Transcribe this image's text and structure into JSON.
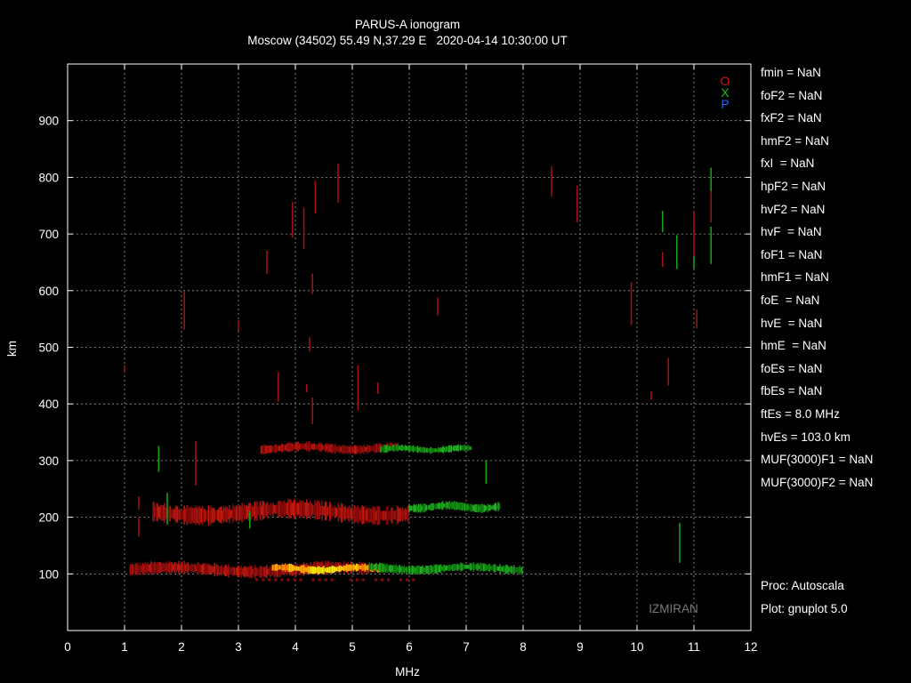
{
  "chart_data": {
    "type": "scatter",
    "title": "PARUS-A ionogram",
    "subtitle": "Moscow (34502) 55.49 N,37.29 E   2020-04-14 10:30:00 UT",
    "xlabel": "MHz",
    "ylabel": "km",
    "xlim": [
      0,
      12
    ],
    "ylim": [
      0,
      1000
    ],
    "x_ticks": [
      "0",
      "1",
      "2",
      "3",
      "4",
      "5",
      "6",
      "7",
      "8",
      "9",
      "10",
      "11",
      "12"
    ],
    "y_ticks": [
      "100",
      "200",
      "300",
      "400",
      "500",
      "600",
      "700",
      "800",
      "900"
    ],
    "grid": true,
    "legend": [
      {
        "label": "O",
        "color": "#e01010"
      },
      {
        "label": "X",
        "color": "#10c010"
      },
      {
        "label": "P",
        "color": "#2060ff"
      }
    ],
    "watermark": "IZMIRAN",
    "traces": [
      {
        "name": "E-layer echo",
        "polarization": "O",
        "x_range": [
          1.1,
          5.3
        ],
        "h_range": [
          98,
          125
        ],
        "intensity": "medium"
      },
      {
        "name": "E-layer echo core",
        "polarization": "O",
        "x_range": [
          3.6,
          5.6
        ],
        "h_range": [
          103,
          120
        ],
        "intensity": "high"
      },
      {
        "name": "E-layer echo",
        "polarization": "X",
        "x_range": [
          5.3,
          8.0
        ],
        "h_range": [
          103,
          122
        ],
        "intensity": "medium"
      },
      {
        "name": "2nd hop Es",
        "polarization": "O",
        "x_range": [
          1.5,
          6.0
        ],
        "h_range": [
          195,
          235
        ],
        "intensity": "medium"
      },
      {
        "name": "2nd hop Es",
        "polarization": "X",
        "x_range": [
          6.0,
          7.6
        ],
        "h_range": [
          212,
          230
        ],
        "intensity": "medium"
      },
      {
        "name": "3rd hop Es",
        "polarization": "O",
        "x_range": [
          3.4,
          5.8
        ],
        "h_range": [
          315,
          335
        ],
        "intensity": "medium"
      },
      {
        "name": "3rd hop Es",
        "polarization": "X",
        "x_range": [
          5.5,
          7.1
        ],
        "h_range": [
          315,
          330
        ],
        "intensity": "medium"
      }
    ],
    "scattered_echoes": [
      {
        "x": 1.0,
        "h": 462,
        "polarization": "O"
      },
      {
        "x": 1.25,
        "h": 225,
        "polarization": "O"
      },
      {
        "x": 1.25,
        "h": 183,
        "polarization": "O"
      },
      {
        "x": 1.6,
        "h": 303,
        "polarization": "X"
      },
      {
        "x": 1.75,
        "h": 215,
        "polarization": "X"
      },
      {
        "x": 2.05,
        "h": 565,
        "polarization": "O"
      },
      {
        "x": 2.25,
        "h": 295,
        "polarization": "O"
      },
      {
        "x": 3.0,
        "h": 538,
        "polarization": "O"
      },
      {
        "x": 3.2,
        "h": 195,
        "polarization": "X"
      },
      {
        "x": 3.5,
        "h": 650,
        "polarization": "O"
      },
      {
        "x": 3.7,
        "h": 430,
        "polarization": "O"
      },
      {
        "x": 3.95,
        "h": 725,
        "polarization": "O"
      },
      {
        "x": 4.15,
        "h": 710,
        "polarization": "O"
      },
      {
        "x": 4.2,
        "h": 428,
        "polarization": "O"
      },
      {
        "x": 4.25,
        "h": 505,
        "polarization": "O"
      },
      {
        "x": 4.3,
        "h": 612,
        "polarization": "O"
      },
      {
        "x": 4.3,
        "h": 388,
        "polarization": "O"
      },
      {
        "x": 4.35,
        "h": 765,
        "polarization": "O"
      },
      {
        "x": 4.75,
        "h": 790,
        "polarization": "O"
      },
      {
        "x": 5.1,
        "h": 428,
        "polarization": "O"
      },
      {
        "x": 5.45,
        "h": 428,
        "polarization": "O"
      },
      {
        "x": 6.5,
        "h": 572,
        "polarization": "O"
      },
      {
        "x": 7.35,
        "h": 280,
        "polarization": "X"
      },
      {
        "x": 8.5,
        "h": 793,
        "polarization": "O"
      },
      {
        "x": 8.95,
        "h": 753,
        "polarization": "O"
      },
      {
        "x": 9.9,
        "h": 577,
        "polarization": "O"
      },
      {
        "x": 10.25,
        "h": 415,
        "polarization": "O"
      },
      {
        "x": 10.45,
        "h": 655,
        "polarization": "O"
      },
      {
        "x": 10.45,
        "h": 722,
        "polarization": "X"
      },
      {
        "x": 10.55,
        "h": 457,
        "polarization": "O"
      },
      {
        "x": 10.7,
        "h": 668,
        "polarization": "X"
      },
      {
        "x": 10.75,
        "h": 155,
        "polarization": "X"
      },
      {
        "x": 11.0,
        "h": 700,
        "polarization": "O"
      },
      {
        "x": 11.0,
        "h": 650,
        "polarization": "X"
      },
      {
        "x": 11.05,
        "h": 550,
        "polarization": "O"
      },
      {
        "x": 11.3,
        "h": 795,
        "polarization": "X"
      },
      {
        "x": 11.3,
        "h": 748,
        "polarization": "O"
      },
      {
        "x": 11.3,
        "h": 680,
        "polarization": "X"
      }
    ]
  },
  "parameters": [
    "fmin = NaN",
    "foF2 = NaN",
    "fxF2 = NaN",
    "hmF2 = NaN",
    "fxI  = NaN",
    "hpF2 = NaN",
    "hvF2 = NaN",
    "hvF  = NaN",
    "foF1 = NaN",
    "hmF1 = NaN",
    "foE  = NaN",
    "hvE  = NaN",
    "hmE  = NaN",
    "foEs = NaN",
    "fbEs = NaN",
    "ftEs = 8.0 MHz",
    "hvEs = 103.0 km",
    "MUF(3000)F1 = NaN",
    "MUF(3000)F2 = NaN"
  ],
  "footer": {
    "proc": "Proc: Autoscala",
    "plot": "Plot: gnuplot 5.0"
  }
}
